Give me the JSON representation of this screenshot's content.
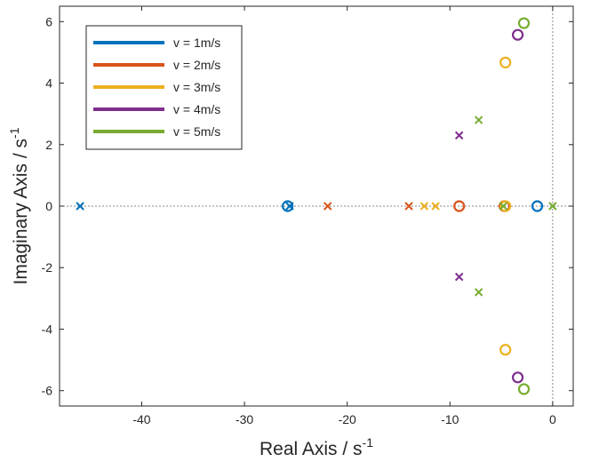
{
  "chart_data": {
    "type": "scatter",
    "title": "",
    "xlabel": {
      "base": "Real Axis / s",
      "sup": "-1"
    },
    "ylabel": {
      "base": "Imaginary Axis / s",
      "sup": "-1"
    },
    "xlim": [
      -48,
      2
    ],
    "ylim": [
      -6.5,
      6.5
    ],
    "xticks": [
      -40,
      -30,
      -20,
      -10,
      0
    ],
    "xtick_labels": [
      "-40",
      "-30",
      "-20",
      "-10",
      "0"
    ],
    "yticks": [
      -6,
      -4,
      -2,
      0,
      2,
      4,
      6
    ],
    "ytick_labels": [
      "-6",
      "-4",
      "-2",
      "0",
      "2",
      "4",
      "6"
    ],
    "grid": false,
    "reference_lines": {
      "real_axis_zero": true,
      "imag_axis_zero": true
    },
    "legend_position": "top-left",
    "series": [
      {
        "name": "v = 1m/s",
        "color": "#0072BD",
        "poles": [
          [
            -46.0,
            0
          ],
          [
            -25.6,
            0
          ]
        ],
        "zeros": [
          [
            -25.8,
            0
          ],
          [
            -1.5,
            0
          ]
        ]
      },
      {
        "name": "v = 2m/s",
        "color": "#D95319",
        "poles": [
          [
            -21.9,
            0
          ],
          [
            -14.0,
            0
          ]
        ],
        "zeros": [
          [
            -9.1,
            0
          ],
          [
            -4.7,
            0
          ]
        ]
      },
      {
        "name": "v = 3m/s",
        "color": "#EDB120",
        "poles": [
          [
            -12.5,
            0
          ],
          [
            -11.4,
            0
          ]
        ],
        "zeros": [
          [
            -4.6,
            4.67
          ],
          [
            -4.6,
            -4.67
          ],
          [
            -4.6,
            0
          ]
        ]
      },
      {
        "name": "v = 4m/s",
        "color": "#7E2F8E",
        "poles": [
          [
            -9.1,
            2.3
          ],
          [
            -9.1,
            -2.3
          ]
        ],
        "zeros": [
          [
            -3.4,
            5.57
          ],
          [
            -3.4,
            -5.57
          ]
        ]
      },
      {
        "name": "v = 5m/s",
        "color": "#77AC30",
        "poles": [
          [
            -7.2,
            2.8
          ],
          [
            -7.2,
            -2.8
          ],
          [
            -4.8,
            0
          ],
          [
            0.0,
            0
          ]
        ],
        "zeros": [
          [
            -2.8,
            5.95
          ],
          [
            -2.8,
            -5.95
          ]
        ]
      }
    ]
  }
}
